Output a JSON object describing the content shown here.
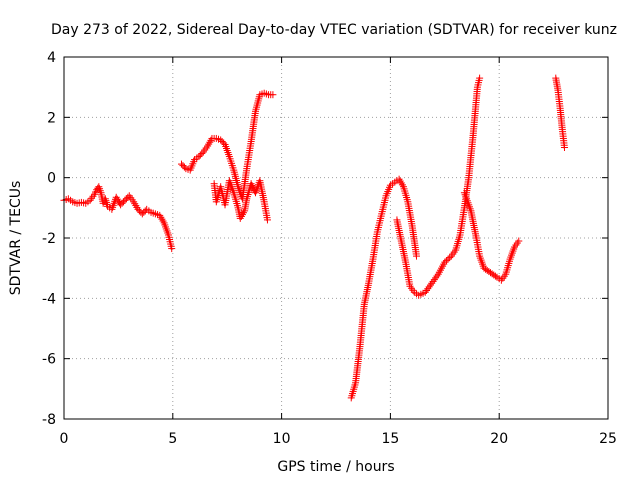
{
  "chart_data": {
    "type": "scatter",
    "title": "Day 273 of 2022, Sidereal Day-to-day VTEC variation (SDTVAR) for receiver kunz",
    "xlabel": "GPS time / hours",
    "ylabel": "SDTVAR / TECUs",
    "xlim": [
      0,
      25
    ],
    "ylim": [
      -8,
      4
    ],
    "xticks": [
      "0",
      "5",
      "10",
      "15",
      "20",
      "25"
    ],
    "yticks": [
      "-8",
      "-6",
      "-4",
      "-2",
      "0",
      "2",
      "4"
    ],
    "grid": true,
    "marker": "plus",
    "color": "#ff0000",
    "series": [
      {
        "name": "",
        "segments": [
          [
            [
              0.0,
              -0.75
            ],
            [
              0.2,
              -0.7
            ],
            [
              0.4,
              -0.8
            ],
            [
              0.6,
              -0.85
            ],
            [
              0.8,
              -0.82
            ],
            [
              1.0,
              -0.85
            ],
            [
              1.2,
              -0.75
            ],
            [
              1.4,
              -0.55
            ],
            [
              1.5,
              -0.4
            ],
            [
              1.6,
              -0.3
            ],
            [
              1.7,
              -0.5
            ],
            [
              1.8,
              -0.85
            ],
            [
              1.9,
              -0.7
            ],
            [
              2.0,
              -0.95
            ],
            [
              2.2,
              -1.05
            ],
            [
              2.4,
              -0.65
            ],
            [
              2.6,
              -0.9
            ],
            [
              2.8,
              -0.75
            ],
            [
              3.0,
              -0.6
            ],
            [
              3.2,
              -0.8
            ],
            [
              3.4,
              -1.05
            ],
            [
              3.6,
              -1.2
            ],
            [
              3.8,
              -1.05
            ],
            [
              4.0,
              -1.15
            ],
            [
              4.2,
              -1.2
            ],
            [
              4.4,
              -1.25
            ],
            [
              4.6,
              -1.5
            ],
            [
              4.8,
              -1.9
            ],
            [
              4.95,
              -2.35
            ]
          ],
          [
            [
              5.4,
              0.45
            ],
            [
              5.6,
              0.3
            ],
            [
              5.8,
              0.25
            ],
            [
              6.0,
              0.6
            ],
            [
              6.2,
              0.7
            ],
            [
              6.4,
              0.85
            ],
            [
              6.6,
              1.05
            ],
            [
              6.8,
              1.3
            ],
            [
              7.0,
              1.3
            ],
            [
              7.2,
              1.25
            ],
            [
              7.4,
              1.1
            ],
            [
              7.6,
              0.7
            ],
            [
              7.8,
              0.25
            ],
            [
              8.0,
              -0.3
            ],
            [
              8.2,
              -0.7
            ],
            [
              8.4,
              0.3
            ],
            [
              8.6,
              1.2
            ],
            [
              8.8,
              2.2
            ],
            [
              9.0,
              2.75
            ],
            [
              9.2,
              2.8
            ],
            [
              9.4,
              2.75
            ],
            [
              9.6,
              2.75
            ]
          ],
          [
            [
              6.9,
              -0.2
            ],
            [
              7.0,
              -0.8
            ],
            [
              7.2,
              -0.3
            ],
            [
              7.4,
              -0.9
            ],
            [
              7.6,
              -0.1
            ],
            [
              7.8,
              -0.5
            ],
            [
              8.0,
              -1.0
            ],
            [
              8.1,
              -1.35
            ],
            [
              8.3,
              -1.1
            ],
            [
              8.4,
              -0.7
            ],
            [
              8.6,
              -0.2
            ],
            [
              8.8,
              -0.5
            ],
            [
              9.0,
              -0.1
            ],
            [
              9.2,
              -0.8
            ],
            [
              9.35,
              -1.4
            ]
          ],
          [
            [
              13.2,
              -7.3
            ],
            [
              13.4,
              -6.8
            ],
            [
              13.6,
              -5.6
            ],
            [
              13.8,
              -4.2
            ],
            [
              14.0,
              -3.5
            ],
            [
              14.2,
              -2.7
            ],
            [
              14.4,
              -1.8
            ],
            [
              14.6,
              -1.2
            ],
            [
              14.8,
              -0.6
            ],
            [
              15.0,
              -0.25
            ],
            [
              15.2,
              -0.15
            ],
            [
              15.4,
              -0.05
            ],
            [
              15.6,
              -0.3
            ],
            [
              15.8,
              -0.8
            ],
            [
              16.0,
              -1.6
            ],
            [
              16.2,
              -2.6
            ]
          ],
          [
            [
              15.3,
              -1.4
            ],
            [
              15.5,
              -2.1
            ],
            [
              15.7,
              -2.8
            ],
            [
              15.9,
              -3.6
            ],
            [
              16.1,
              -3.8
            ],
            [
              16.3,
              -3.9
            ],
            [
              16.6,
              -3.8
            ],
            [
              16.9,
              -3.5
            ],
            [
              17.2,
              -3.2
            ],
            [
              17.5,
              -2.8
            ],
            [
              17.8,
              -2.6
            ],
            [
              18.0,
              -2.4
            ],
            [
              18.2,
              -1.9
            ],
            [
              18.4,
              -1.0
            ],
            [
              18.6,
              0.0
            ],
            [
              18.8,
              1.4
            ],
            [
              19.0,
              3.0
            ],
            [
              19.1,
              3.3
            ]
          ],
          [
            [
              18.4,
              -0.5
            ],
            [
              18.7,
              -1.1
            ],
            [
              18.95,
              -2.0
            ],
            [
              19.1,
              -2.6
            ],
            [
              19.3,
              -3.0
            ],
            [
              19.6,
              -3.15
            ],
            [
              19.9,
              -3.3
            ],
            [
              20.1,
              -3.4
            ],
            [
              20.3,
              -3.2
            ],
            [
              20.5,
              -2.7
            ],
            [
              20.7,
              -2.3
            ],
            [
              20.9,
              -2.1
            ]
          ],
          [
            [
              22.6,
              3.3
            ],
            [
              22.7,
              2.9
            ],
            [
              22.8,
              2.3
            ],
            [
              22.9,
              1.6
            ],
            [
              23.0,
              1.0
            ]
          ]
        ]
      }
    ]
  }
}
